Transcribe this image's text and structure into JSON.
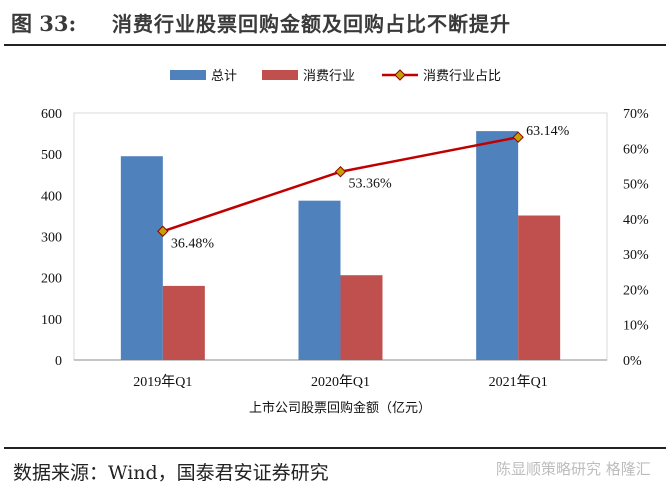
{
  "header": {
    "fig_label": "图 33:",
    "title": "消费行业股票回购金额及回购占比不断提升"
  },
  "footer": {
    "source": "数据来源：Wind，国泰君安证券研究",
    "watermark": "陈显顺策略研究 格隆汇"
  },
  "chart_data": {
    "type": "bar",
    "categories": [
      "2019年Q1",
      "2020年Q1",
      "2021年Q1"
    ],
    "series": [
      {
        "name": "总计",
        "type": "bar",
        "axis": "left",
        "color": "#4f81bd",
        "values": [
          495,
          387,
          556
        ]
      },
      {
        "name": "消费行业",
        "type": "bar",
        "axis": "left",
        "color": "#c0504d",
        "values": [
          180,
          206,
          351
        ]
      },
      {
        "name": "消费行业占比",
        "type": "line",
        "axis": "right",
        "color": "#c00000",
        "marker_color": "#c8a000",
        "values": [
          36.48,
          53.36,
          63.14
        ],
        "labels": [
          "36.48%",
          "53.36%",
          "63.14%"
        ]
      }
    ],
    "xlabel": "上市公司股票回购金额（亿元）",
    "ylabel": "",
    "ylim": [
      0,
      600
    ],
    "yticks": [
      0,
      100,
      200,
      300,
      400,
      500,
      600
    ],
    "y2lim": [
      0,
      70
    ],
    "y2ticks": [
      "0%",
      "10%",
      "20%",
      "30%",
      "40%",
      "50%",
      "60%",
      "70%"
    ],
    "legend_position": "top",
    "grid": false
  }
}
